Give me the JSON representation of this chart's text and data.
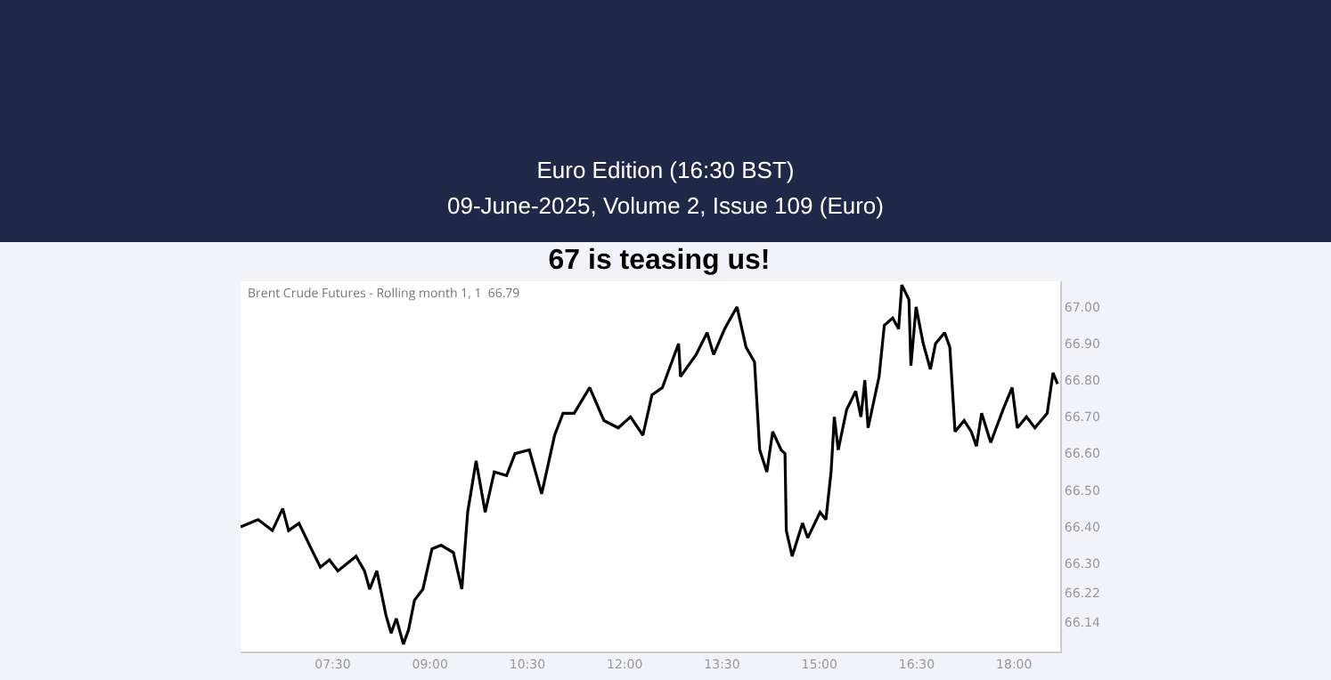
{
  "chart_data": {
    "type": "line",
    "title": "67 is teasing us!",
    "annotations": [
      "Euro Edition (16:30 BST)",
      "09-June-2025, Volume 2, Issue 109 (Euro)",
      "Brent Crude Futures - Rolling month 1, 1  66.79"
    ],
    "x": [
      6.08,
      6.35,
      6.57,
      6.73,
      6.82,
      6.98,
      7.17,
      7.31,
      7.45,
      7.58,
      7.86,
      7.99,
      8.07,
      8.18,
      8.32,
      8.4,
      8.48,
      8.59,
      8.67,
      8.76,
      8.89,
      9.03,
      9.17,
      9.36,
      9.49,
      9.58,
      9.71,
      9.85,
      9.99,
      10.18,
      10.31,
      10.53,
      10.72,
      10.92,
      11.05,
      11.22,
      11.46,
      11.68,
      11.9,
      12.09,
      12.28,
      12.42,
      12.58,
      12.83,
      12.86,
      13.1,
      13.27,
      13.37,
      13.54,
      13.73,
      13.87,
      14.0,
      14.08,
      14.19,
      14.28,
      14.41,
      14.47,
      14.49,
      14.58,
      14.74,
      14.82,
      15.01,
      15.1,
      15.18,
      15.23,
      15.29,
      15.42,
      15.56,
      15.64,
      15.7,
      15.75,
      15.92,
      16.0,
      16.13,
      16.22,
      16.27,
      16.38,
      16.41,
      16.49,
      16.6,
      16.71,
      16.79,
      16.93,
      17.01,
      17.09,
      17.23,
      17.34,
      17.42,
      17.5,
      17.64,
      17.83,
      17.97,
      18.05,
      18.19,
      18.32,
      18.51,
      18.6,
      18.67
    ],
    "series": [
      {
        "color": "#000000",
        "values": [
          66.4,
          66.42,
          66.39,
          66.45,
          66.39,
          66.41,
          66.34,
          66.29,
          66.31,
          66.28,
          66.32,
          66.28,
          66.23,
          66.28,
          66.16,
          66.11,
          66.15,
          66.08,
          66.12,
          66.2,
          66.23,
          66.34,
          66.35,
          66.33,
          66.23,
          66.44,
          66.58,
          66.44,
          66.55,
          66.54,
          66.6,
          66.61,
          66.49,
          66.65,
          66.71,
          66.71,
          66.78,
          66.69,
          66.67,
          66.7,
          66.65,
          66.76,
          66.78,
          66.9,
          66.81,
          66.87,
          66.93,
          66.87,
          66.94,
          67.0,
          66.89,
          66.85,
          66.61,
          66.55,
          66.66,
          66.61,
          66.6,
          66.39,
          66.32,
          66.41,
          66.37,
          66.44,
          66.42,
          66.55,
          66.7,
          66.61,
          66.72,
          66.77,
          66.7,
          66.8,
          66.67,
          66.81,
          66.95,
          66.97,
          66.94,
          67.06,
          67.02,
          66.84,
          67.0,
          66.9,
          66.83,
          66.9,
          66.93,
          66.89,
          66.66,
          66.69,
          66.66,
          66.62,
          66.71,
          66.63,
          66.72,
          66.78,
          66.67,
          66.7,
          66.67,
          66.71,
          66.82,
          66.79
        ]
      }
    ],
    "xlim": [
      6.08,
      18.71
    ],
    "xticks": [
      {
        "value": 7.5,
        "label": "07:30"
      },
      {
        "value": 9,
        "label": "09:00"
      },
      {
        "value": 10.5,
        "label": "10:30"
      },
      {
        "value": 12,
        "label": "12:00"
      },
      {
        "value": 13.5,
        "label": "13:30"
      },
      {
        "value": 15,
        "label": "15:00"
      },
      {
        "value": 16.5,
        "label": "16:30"
      },
      {
        "value": 18,
        "label": "18:00"
      }
    ],
    "ylim": [
      66.06,
      67.07
    ],
    "yticks": [
      {
        "value": 66.14,
        "label": "66.14"
      },
      {
        "value": 66.22,
        "label": "66.22"
      },
      {
        "value": 66.3,
        "label": "66.30"
      },
      {
        "value": 66.4,
        "label": "66.40"
      },
      {
        "value": 66.5,
        "label": "66.50"
      },
      {
        "value": 66.6,
        "label": "66.60"
      },
      {
        "value": 66.7,
        "label": "66.70"
      },
      {
        "value": 66.8,
        "label": "66.80"
      },
      {
        "value": 66.9,
        "label": "66.90"
      },
      {
        "value": 67,
        "label": "67.00"
      }
    ],
    "grid": false,
    "marker": "none",
    "line_style": "solid"
  }
}
